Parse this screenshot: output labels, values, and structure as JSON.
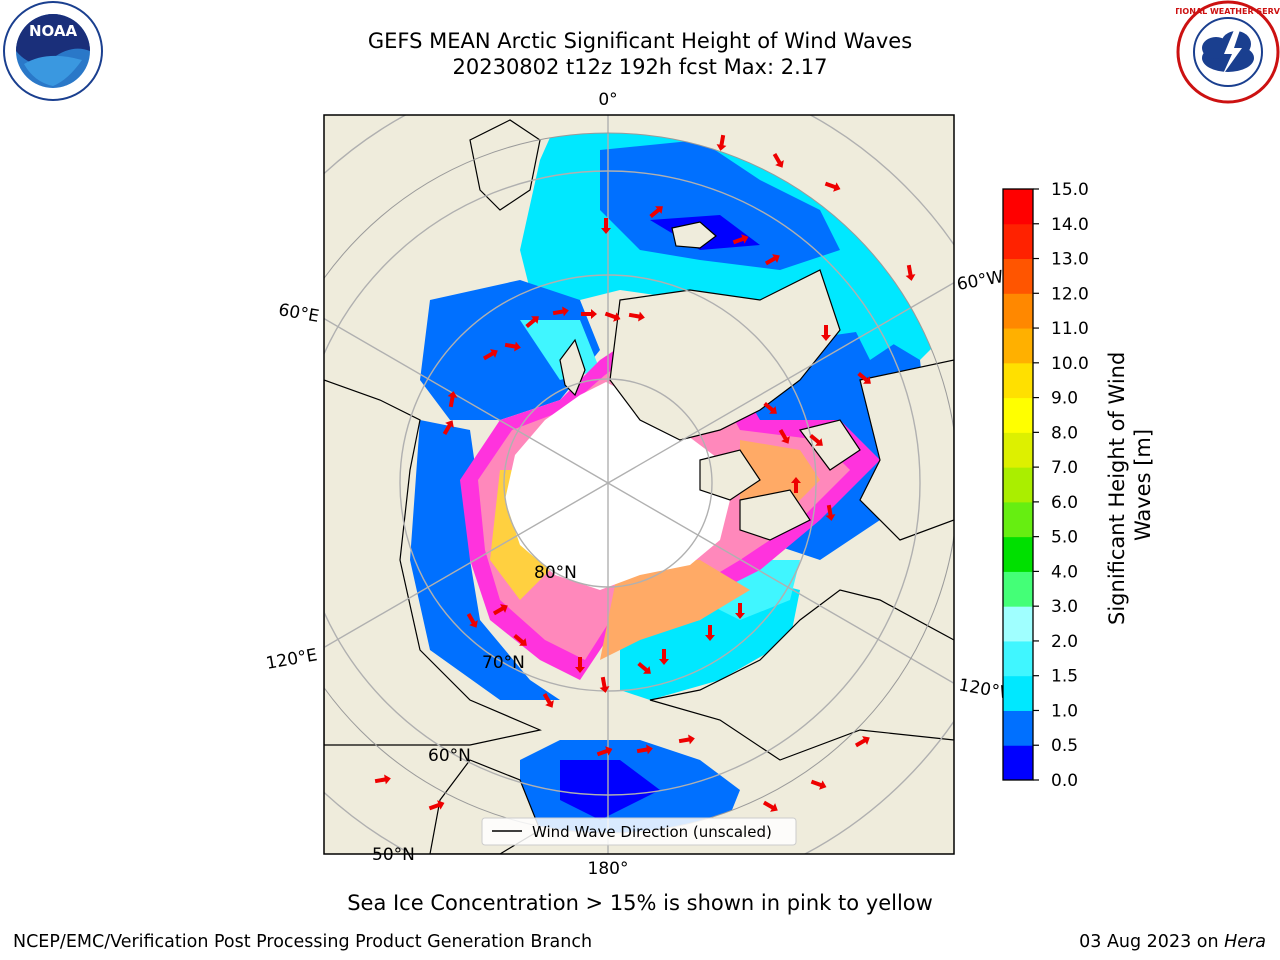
{
  "title": {
    "line1": "GEFS MEAN Arctic Significant Height of Wind Waves",
    "line2": "20230802 t12z 192h fcst   Max: 2.17"
  },
  "map": {
    "projection": "north-polar-stereographic",
    "longitude_labels": [
      "0°",
      "60°E",
      "120°E",
      "180°",
      "120°W",
      "60°W"
    ],
    "latitude_labels": [
      "80°N",
      "70°N",
      "60°N",
      "50°N"
    ],
    "legend_label": "Wind Wave Direction (unscaled)",
    "land_color": "#efecdc",
    "ice_colors": [
      "#ff33dd",
      "#ff88bb",
      "#ffaa66",
      "#ffd040"
    ],
    "arrow_color": "#ee0000"
  },
  "colorbar": {
    "label": "Significant Height of Wind Waves [m]",
    "tick_labels": [
      "0.0",
      "0.5",
      "1.0",
      "1.5",
      "2.0",
      "3.0",
      "4.0",
      "5.0",
      "6.0",
      "7.0",
      "8.0",
      "9.0",
      "10.0",
      "11.0",
      "12.0",
      "13.0",
      "14.0",
      "15.0"
    ],
    "colors": [
      "#0000ff",
      "#0070ff",
      "#00e8ff",
      "#40f6ff",
      "#a0ffff",
      "#44ff77",
      "#00e000",
      "#66ee11",
      "#aaee00",
      "#ddf000",
      "#ffff00",
      "#ffe000",
      "#ffb000",
      "#ff8800",
      "#ff5500",
      "#ff2200",
      "#ff0000"
    ]
  },
  "caption": "Sea Ice Concentration > 15% is shown in pink to yellow",
  "footer": {
    "left": "NCEP/EMC/Verification Post Processing Product Generation Branch",
    "right_date": "03 Aug 2023 on ",
    "right_host": "Hera"
  },
  "logos": {
    "noaa_text": "NOAA",
    "nws_text": "NATIONAL WEATHER SERVICE"
  }
}
